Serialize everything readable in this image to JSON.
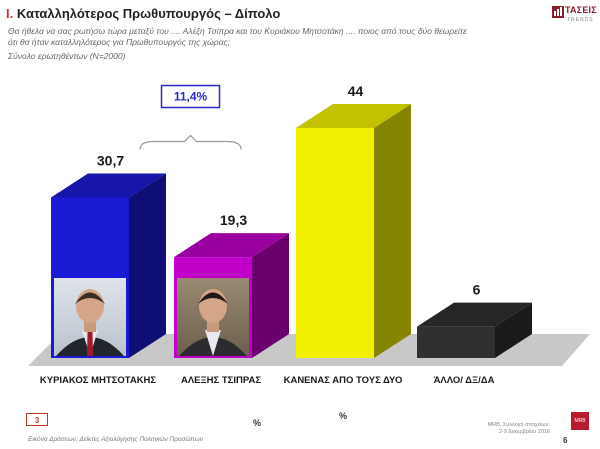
{
  "header": {
    "section_number": "I.",
    "title": "Καταλληλότερος Πρωθυπουργός – Δίπολο",
    "subtitle": "Θα ήθελα να σας ρωτήσω τώρα μεταξύ του .... Αλέξη Τσίπρα και του Κυριάκου Μητσοτάκη .... ποιος από τους δύο θεωρείτε ότι θα ήταν καταλληλότερος για Πρωθυπουργός της χώρας;",
    "sample": "Σύνολο ερωτηθέντων (Ν=2000)"
  },
  "logo": {
    "name": "ΤΑΣΕΙΣ",
    "sub": "TRENDS",
    "color": "#8b1e2d",
    "icon": "taseis-logo-icon"
  },
  "chart_data": {
    "type": "bar",
    "title": "Καταλληλότερος Πρωθυπουργός – Δίπολο",
    "xlabel": "",
    "ylabel": "%",
    "ylim": [
      0,
      44
    ],
    "grid": false,
    "categories": [
      "ΚΥΡΙΑΚΟΣ ΜΗΤΣΟΤΑΚΗΣ",
      "ΑΛΕΞΗΣ ΤΣΙΠΡΑΣ",
      "ΚΑΝΕΝΑΣ ΑΠΟ ΤΟΥΣ ΔΥΟ",
      "ΆΛΛΟ/ ΔΞ/ΔΑ"
    ],
    "values": [
      30.7,
      19.3,
      44,
      6
    ],
    "value_labels": [
      "30,7",
      "19,3",
      "44",
      "6"
    ],
    "colors": [
      "#1a1ad4",
      "#c000c8",
      "#f2f200",
      "#303030"
    ],
    "photos": [
      "mitsotakis-photo",
      "tsipras-photo",
      "",
      ""
    ],
    "annotation": {
      "text": "11,4%",
      "between": [
        0,
        1
      ],
      "color": "#2a2ac8"
    }
  },
  "footer": {
    "question_number": "3",
    "percent_symbol_left": "%",
    "percent_symbol_center": "%",
    "note": "Εικόνα Δράσεων: Δείκτες Αξιολόγησης Πολιτικών Προσώπων",
    "source_line1": "MRB, Συλλογή στοιχείων:",
    "source_line2": "2-9 Δεκεμβρίου 2016",
    "badge": "MRB",
    "page": "6"
  }
}
